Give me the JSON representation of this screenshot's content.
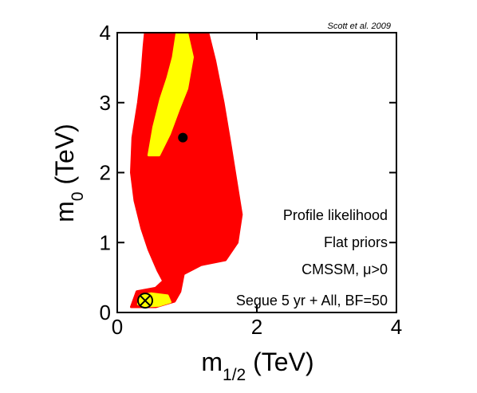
{
  "chart_data": {
    "type": "contour",
    "credit": "Scott et al. 2009",
    "xlabel": {
      "main": "m",
      "sub": "1/2",
      "unit": " (TeV)"
    },
    "ylabel": {
      "main": "m",
      "sub": "0",
      "unit": " (TeV)"
    },
    "xlim": [
      0,
      4
    ],
    "ylim": [
      0,
      4
    ],
    "xticks": [
      0,
      2,
      4
    ],
    "yticks": [
      0,
      1,
      2,
      3,
      4
    ],
    "xtick_labels": [
      "0",
      "2",
      "4"
    ],
    "ytick_labels": [
      "0",
      "1",
      "2",
      "3",
      "4"
    ],
    "grid": false,
    "annotations": [
      "Profile likelihood",
      "Flat priors",
      "CMSSM, μ>0",
      "Segue 5 yr + All, BF=50"
    ],
    "regions": [
      {
        "level": "outer",
        "color": "#ff0000",
        "outline": [
          [
            0.2,
            0.08
          ],
          [
            0.28,
            0.3
          ],
          [
            0.55,
            0.35
          ],
          [
            0.66,
            0.45
          ],
          [
            0.58,
            0.6
          ],
          [
            0.45,
            0.9
          ],
          [
            0.35,
            1.2
          ],
          [
            0.25,
            1.6
          ],
          [
            0.2,
            2.0
          ],
          [
            0.22,
            2.5
          ],
          [
            0.3,
            3.0
          ],
          [
            0.35,
            3.4
          ],
          [
            0.38,
            3.8
          ],
          [
            0.4,
            4.0
          ],
          [
            1.3,
            4.0
          ],
          [
            1.4,
            3.6
          ],
          [
            1.52,
            3.0
          ],
          [
            1.62,
            2.4
          ],
          [
            1.7,
            1.9
          ],
          [
            1.78,
            1.4
          ],
          [
            1.72,
            1.0
          ],
          [
            1.55,
            0.75
          ],
          [
            1.2,
            0.68
          ],
          [
            0.95,
            0.55
          ],
          [
            0.9,
            0.3
          ],
          [
            0.82,
            0.16
          ],
          [
            0.55,
            0.08
          ]
        ]
      },
      {
        "level": "inner-upper",
        "color": "#ffff00",
        "outline": [
          [
            0.45,
            2.25
          ],
          [
            0.52,
            2.65
          ],
          [
            0.62,
            3.05
          ],
          [
            0.72,
            3.35
          ],
          [
            0.8,
            3.65
          ],
          [
            0.85,
            3.98
          ],
          [
            1.0,
            4.0
          ],
          [
            1.08,
            3.65
          ],
          [
            1.0,
            3.2
          ],
          [
            0.88,
            2.9
          ],
          [
            0.75,
            2.55
          ],
          [
            0.6,
            2.25
          ]
        ]
      },
      {
        "level": "inner-lower",
        "color": "#ffff00",
        "outline": [
          [
            0.3,
            0.12
          ],
          [
            0.33,
            0.24
          ],
          [
            0.48,
            0.27
          ],
          [
            0.72,
            0.24
          ],
          [
            0.76,
            0.15
          ],
          [
            0.6,
            0.1
          ],
          [
            0.42,
            0.09
          ]
        ]
      }
    ],
    "points": [
      {
        "name": "best-fit",
        "x": 0.94,
        "y": 2.5,
        "marker": "filled-circle"
      },
      {
        "name": "posterior-mean",
        "x": 0.4,
        "y": 0.17,
        "marker": "circled-x"
      }
    ]
  }
}
